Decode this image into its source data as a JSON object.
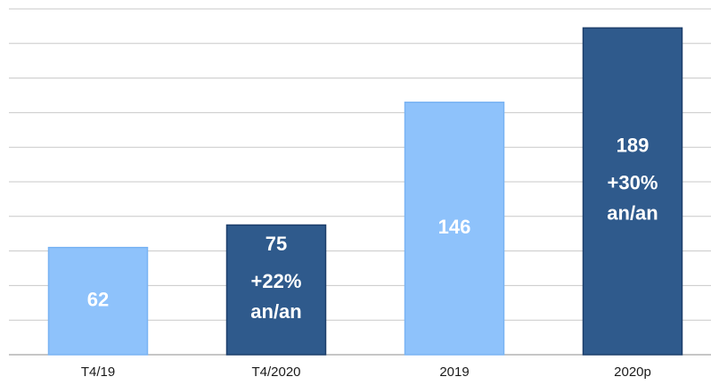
{
  "chart_data": {
    "type": "bar",
    "categories": [
      "T4/19",
      "T4/2020",
      "2019",
      "2020p"
    ],
    "values": [
      62,
      75,
      146,
      189
    ],
    "colors": [
      "#8ec2fb",
      "#2f5a8c",
      "#8ec2fb",
      "#2f5a8c"
    ],
    "annotations": [
      null,
      [
        "+22%",
        "an/an"
      ],
      null,
      [
        "+30%",
        "an/an"
      ]
    ],
    "ylim": [
      0,
      200
    ],
    "yticks": [
      0,
      20,
      40,
      60,
      80,
      100,
      120,
      140,
      160,
      180,
      200
    ],
    "grid": true
  }
}
